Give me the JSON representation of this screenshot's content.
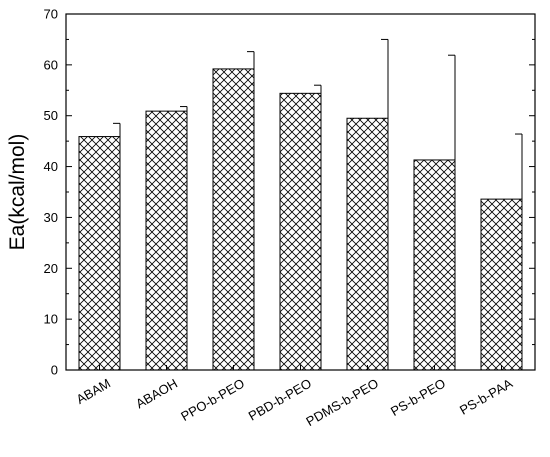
{
  "chart_data": {
    "type": "bar",
    "title": "",
    "xlabel": "",
    "ylabel": "Ea(kcal/mol)",
    "ylim": [
      0,
      70
    ],
    "yticks": [
      0,
      10,
      20,
      30,
      40,
      50,
      60,
      70
    ],
    "grid": false,
    "legend": "none",
    "bar_pattern": "crosshatch",
    "categories": [
      "ABAM",
      "ABAOH",
      "PPO-b-PEO",
      "PBD-b-PEO",
      "PDMS-b-PEO",
      "PS-b-PEO",
      "PS-b-PAA"
    ],
    "values": [
      45.9,
      50.9,
      59.2,
      54.4,
      49.5,
      41.3,
      33.6
    ],
    "error_upper": [
      2.6,
      0.9,
      3.4,
      1.6,
      15.5,
      20.6,
      12.8
    ]
  },
  "colors": {
    "axis": "#000000",
    "bar_fill": "#ffffff",
    "hatch": "#000000"
  }
}
